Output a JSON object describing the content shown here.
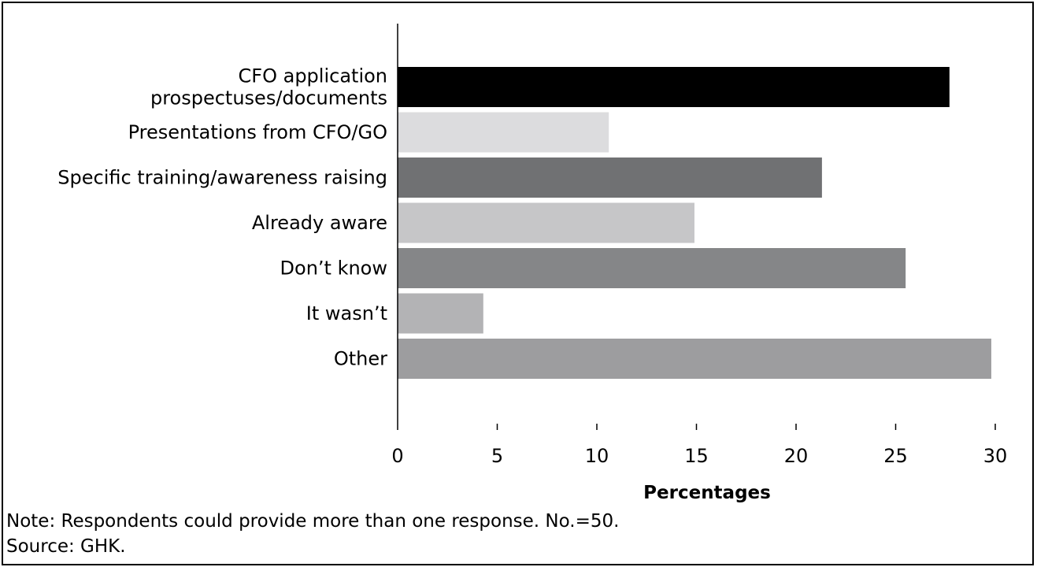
{
  "chart_data": {
    "type": "bar",
    "orientation": "horizontal",
    "categories": [
      [
        "CFO application",
        "prospectuses/documents"
      ],
      [
        "Presentations from CFO/GO"
      ],
      [
        "Specific training/awareness raising"
      ],
      [
        "Already aware"
      ],
      [
        "Don’t know"
      ],
      [
        "It wasn’t"
      ],
      [
        "Other"
      ]
    ],
    "values": [
      27.7,
      10.6,
      21.3,
      14.9,
      25.5,
      4.3,
      29.8
    ],
    "colors": [
      "#000000",
      "#dcdcde",
      "#707173",
      "#c6c6c8",
      "#858688",
      "#b3b3b5",
      "#9d9d9f"
    ],
    "xlabel": "Percentages",
    "xlim": [
      0,
      30
    ],
    "xticks": [
      0,
      5,
      10,
      15,
      20,
      25,
      30
    ],
    "grid": false,
    "legend": "none"
  },
  "footer": {
    "note": "Note: Respondents could provide more than one response. No.=50.",
    "source": "Source: GHK."
  }
}
